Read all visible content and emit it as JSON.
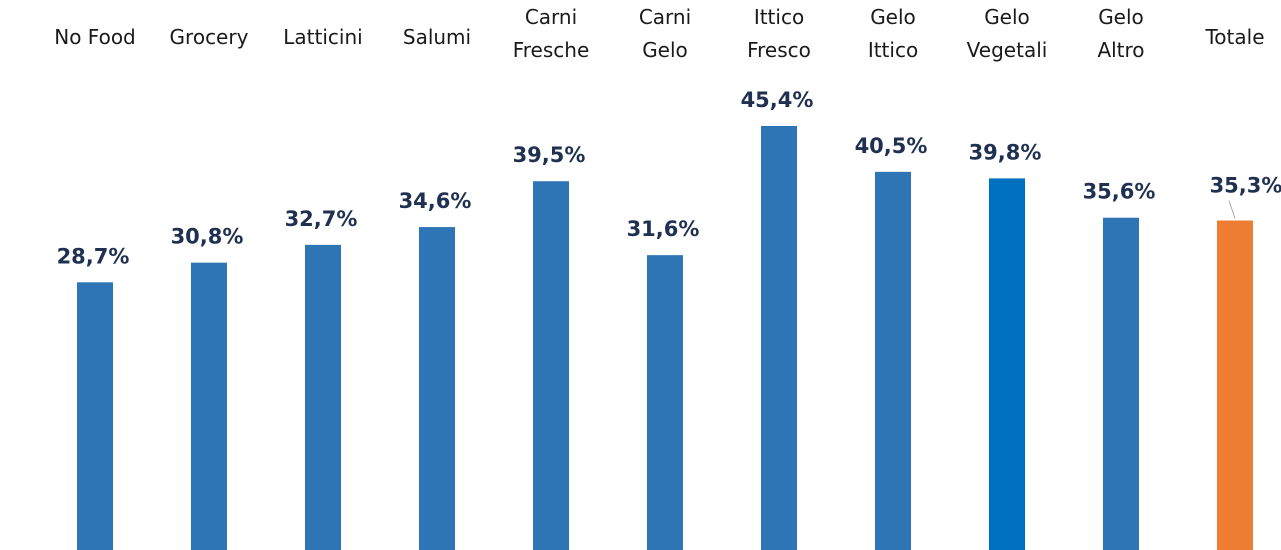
{
  "chart_data": {
    "type": "bar",
    "categories": [
      "No Food",
      "Grocery",
      "Latticini",
      "Salumi",
      "Carni\nFresche",
      "Carni\nGelo",
      "Ittico\nFresco",
      "Gelo\nIttico",
      "Gelo\nVegetali",
      "Gelo\nAltro",
      "Totale"
    ],
    "values": [
      28.7,
      30.8,
      32.7,
      34.6,
      39.5,
      31.6,
      45.4,
      40.5,
      39.8,
      35.6,
      35.3
    ],
    "value_labels": [
      "28,7%",
      "30,8%",
      "32,7%",
      "34,6%",
      "39,5%",
      "31,6%",
      "45,4%",
      "40,5%",
      "39,8%",
      "35,6%",
      "35,3%"
    ],
    "colors": [
      "#2e75b6",
      "#2e75b6",
      "#2e75b6",
      "#2e75b6",
      "#2e75b6",
      "#2e75b6",
      "#2e75b6",
      "#2e75b6",
      "#0070c0",
      "#2e75b6",
      "#ed7d31"
    ],
    "ylim": [
      0,
      58
    ]
  }
}
